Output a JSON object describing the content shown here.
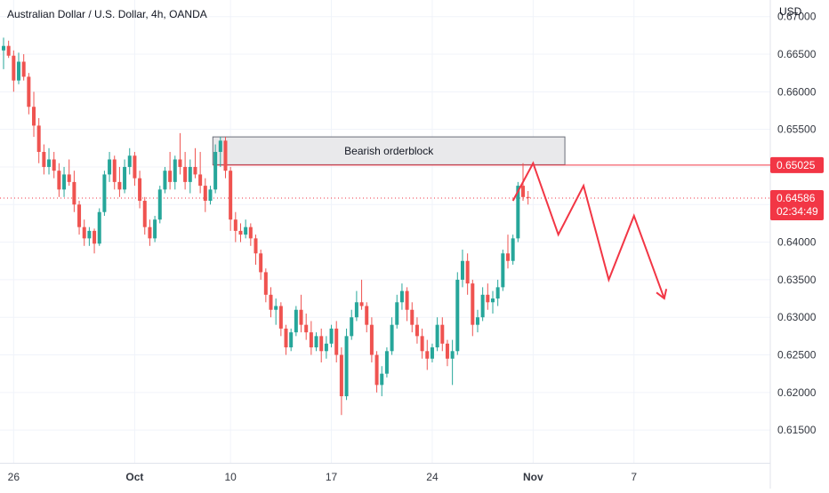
{
  "chart_data": {
    "type": "candlestick",
    "title": "Australian Dollar / U.S. Dollar, 4h, OANDA",
    "currency": "USD",
    "y_axis": {
      "min": 0.611,
      "max": 0.6715,
      "ticks": [
        "0.67000",
        "0.66500",
        "0.66000",
        "0.65500",
        "0.65000",
        "0.64500",
        "0.64000",
        "0.63500",
        "0.63000",
        "0.62500",
        "0.62000",
        "0.61500"
      ]
    },
    "x_axis": {
      "ticks": [
        {
          "label": "26",
          "candle": 2
        },
        {
          "label": "Oct",
          "candle": 26
        },
        {
          "label": "10",
          "candle": 45
        },
        {
          "label": "17",
          "candle": 65
        },
        {
          "label": "24",
          "candle": 85
        },
        {
          "label": "Nov",
          "candle": 105
        },
        {
          "label": "7",
          "candle": 125
        }
      ]
    },
    "candle_spacing": 5.67,
    "up_color": "#26a69a",
    "down_color": "#ef5350",
    "candles": [
      [
        0.6655,
        0.6672,
        0.663,
        0.6661
      ],
      [
        0.6661,
        0.6668,
        0.6645,
        0.6648
      ],
      [
        0.6648,
        0.6655,
        0.66,
        0.6615
      ],
      [
        0.6615,
        0.6652,
        0.661,
        0.664
      ],
      [
        0.664,
        0.665,
        0.6615,
        0.662
      ],
      [
        0.662,
        0.6625,
        0.657,
        0.658
      ],
      [
        0.658,
        0.66,
        0.654,
        0.6555
      ],
      [
        0.6555,
        0.6565,
        0.6505,
        0.652
      ],
      [
        0.652,
        0.653,
        0.649,
        0.65
      ],
      [
        0.65,
        0.6525,
        0.649,
        0.651
      ],
      [
        0.651,
        0.652,
        0.6485,
        0.6495
      ],
      [
        0.6495,
        0.6505,
        0.646,
        0.647
      ],
      [
        0.647,
        0.65,
        0.646,
        0.649
      ],
      [
        0.649,
        0.651,
        0.6475,
        0.648
      ],
      [
        0.648,
        0.6495,
        0.644,
        0.645
      ],
      [
        0.645,
        0.6455,
        0.641,
        0.642
      ],
      [
        0.642,
        0.643,
        0.6395,
        0.6405
      ],
      [
        0.6405,
        0.642,
        0.6395,
        0.6415
      ],
      [
        0.6415,
        0.6418,
        0.6385,
        0.6398
      ],
      [
        0.6398,
        0.6445,
        0.6395,
        0.644
      ],
      [
        0.644,
        0.6495,
        0.6435,
        0.649
      ],
      [
        0.649,
        0.652,
        0.648,
        0.651
      ],
      [
        0.651,
        0.6515,
        0.647,
        0.648
      ],
      [
        0.648,
        0.65,
        0.646,
        0.647
      ],
      [
        0.647,
        0.651,
        0.6465,
        0.65
      ],
      [
        0.65,
        0.6525,
        0.649,
        0.6515
      ],
      [
        0.6515,
        0.652,
        0.6475,
        0.6485
      ],
      [
        0.6485,
        0.6495,
        0.6445,
        0.6455
      ],
      [
        0.6455,
        0.646,
        0.641,
        0.642
      ],
      [
        0.642,
        0.643,
        0.6395,
        0.6405
      ],
      [
        0.6405,
        0.6435,
        0.64,
        0.643
      ],
      [
        0.643,
        0.6475,
        0.6425,
        0.647
      ],
      [
        0.647,
        0.65,
        0.6465,
        0.6495
      ],
      [
        0.6495,
        0.652,
        0.647,
        0.648
      ],
      [
        0.648,
        0.6515,
        0.647,
        0.651
      ],
      [
        0.651,
        0.6545,
        0.649,
        0.65
      ],
      [
        0.65,
        0.652,
        0.647,
        0.648
      ],
      [
        0.648,
        0.651,
        0.6465,
        0.65
      ],
      [
        0.65,
        0.6525,
        0.6485,
        0.649
      ],
      [
        0.649,
        0.652,
        0.6465,
        0.6475
      ],
      [
        0.6475,
        0.6485,
        0.644,
        0.6455
      ],
      [
        0.6455,
        0.6475,
        0.645,
        0.647
      ],
      [
        0.647,
        0.653,
        0.6465,
        0.652
      ],
      [
        0.652,
        0.654,
        0.65,
        0.6535
      ],
      [
        0.6535,
        0.654,
        0.6485,
        0.6495
      ],
      [
        0.6495,
        0.65,
        0.6415,
        0.643
      ],
      [
        0.643,
        0.644,
        0.64,
        0.6415
      ],
      [
        0.6415,
        0.6425,
        0.64,
        0.641
      ],
      [
        0.641,
        0.643,
        0.6405,
        0.642
      ],
      [
        0.642,
        0.6425,
        0.6395,
        0.6405
      ],
      [
        0.6405,
        0.641,
        0.637,
        0.6385
      ],
      [
        0.6385,
        0.639,
        0.635,
        0.636
      ],
      [
        0.636,
        0.6365,
        0.632,
        0.633
      ],
      [
        0.633,
        0.634,
        0.63,
        0.631
      ],
      [
        0.631,
        0.6325,
        0.629,
        0.6315
      ],
      [
        0.6315,
        0.632,
        0.6275,
        0.6285
      ],
      [
        0.6285,
        0.629,
        0.625,
        0.626
      ],
      [
        0.626,
        0.6285,
        0.6255,
        0.628
      ],
      [
        0.628,
        0.6315,
        0.6275,
        0.631
      ],
      [
        0.631,
        0.633,
        0.628,
        0.629
      ],
      [
        0.629,
        0.6305,
        0.627,
        0.628
      ],
      [
        0.628,
        0.6295,
        0.625,
        0.626
      ],
      [
        0.626,
        0.628,
        0.6255,
        0.6275
      ],
      [
        0.6275,
        0.6285,
        0.624,
        0.6255
      ],
      [
        0.6255,
        0.6275,
        0.6245,
        0.6265
      ],
      [
        0.6265,
        0.629,
        0.626,
        0.6285
      ],
      [
        0.6285,
        0.6295,
        0.624,
        0.625
      ],
      [
        0.625,
        0.626,
        0.617,
        0.6195
      ],
      [
        0.6195,
        0.6285,
        0.619,
        0.6275
      ],
      [
        0.6275,
        0.631,
        0.627,
        0.63
      ],
      [
        0.63,
        0.6335,
        0.6295,
        0.632
      ],
      [
        0.632,
        0.635,
        0.631,
        0.6315
      ],
      [
        0.6315,
        0.632,
        0.628,
        0.629
      ],
      [
        0.629,
        0.63,
        0.624,
        0.625
      ],
      [
        0.625,
        0.6255,
        0.62,
        0.621
      ],
      [
        0.621,
        0.6235,
        0.6195,
        0.6225
      ],
      [
        0.6225,
        0.626,
        0.622,
        0.6255
      ],
      [
        0.6255,
        0.63,
        0.625,
        0.629
      ],
      [
        0.629,
        0.633,
        0.6285,
        0.632
      ],
      [
        0.632,
        0.6345,
        0.631,
        0.6335
      ],
      [
        0.6335,
        0.634,
        0.6295,
        0.631
      ],
      [
        0.631,
        0.632,
        0.628,
        0.629
      ],
      [
        0.629,
        0.63,
        0.6265,
        0.6275
      ],
      [
        0.6275,
        0.6285,
        0.6245,
        0.6255
      ],
      [
        0.6255,
        0.627,
        0.623,
        0.6245
      ],
      [
        0.6245,
        0.6265,
        0.624,
        0.626
      ],
      [
        0.626,
        0.63,
        0.6255,
        0.629
      ],
      [
        0.629,
        0.63,
        0.6255,
        0.6265
      ],
      [
        0.6265,
        0.627,
        0.6235,
        0.6245
      ],
      [
        0.6245,
        0.627,
        0.621,
        0.6255
      ],
      [
        0.6255,
        0.636,
        0.625,
        0.635
      ],
      [
        0.635,
        0.639,
        0.634,
        0.6375
      ],
      [
        0.6375,
        0.6385,
        0.633,
        0.6345
      ],
      [
        0.6345,
        0.635,
        0.6275,
        0.629
      ],
      [
        0.629,
        0.631,
        0.628,
        0.63
      ],
      [
        0.63,
        0.634,
        0.6295,
        0.633
      ],
      [
        0.633,
        0.6345,
        0.631,
        0.632
      ],
      [
        0.632,
        0.6335,
        0.6305,
        0.6325
      ],
      [
        0.6325,
        0.635,
        0.6315,
        0.634
      ],
      [
        0.634,
        0.639,
        0.6335,
        0.6385
      ],
      [
        0.6385,
        0.641,
        0.6365,
        0.6375
      ],
      [
        0.6375,
        0.641,
        0.637,
        0.6405
      ],
      [
        0.6405,
        0.648,
        0.64,
        0.6475
      ],
      [
        0.6475,
        0.6505,
        0.6455,
        0.646
      ],
      [
        0.646,
        0.6468,
        0.645,
        0.6459
      ]
    ],
    "orderblock": {
      "label": "Bearish orderblock",
      "y_top": 0.654,
      "y_bottom": 0.6503,
      "from_candle": 41.5,
      "to_candle": 111.3
    },
    "resistance_line": {
      "value": 0.65025,
      "from_candle": 41.5,
      "label": "0.65025",
      "color": "#f23645"
    },
    "last_price": {
      "value": 0.64586,
      "label": "0.64586",
      "countdown": "02:34:49",
      "color": "#f23645"
    },
    "projection": {
      "color": "#f23645",
      "points": [
        [
          101,
          0.6455
        ],
        [
          105,
          0.6505
        ],
        [
          110,
          0.641
        ],
        [
          115,
          0.6475
        ],
        [
          120,
          0.635
        ],
        [
          125,
          0.6435
        ],
        [
          131,
          0.6325
        ]
      ]
    }
  }
}
